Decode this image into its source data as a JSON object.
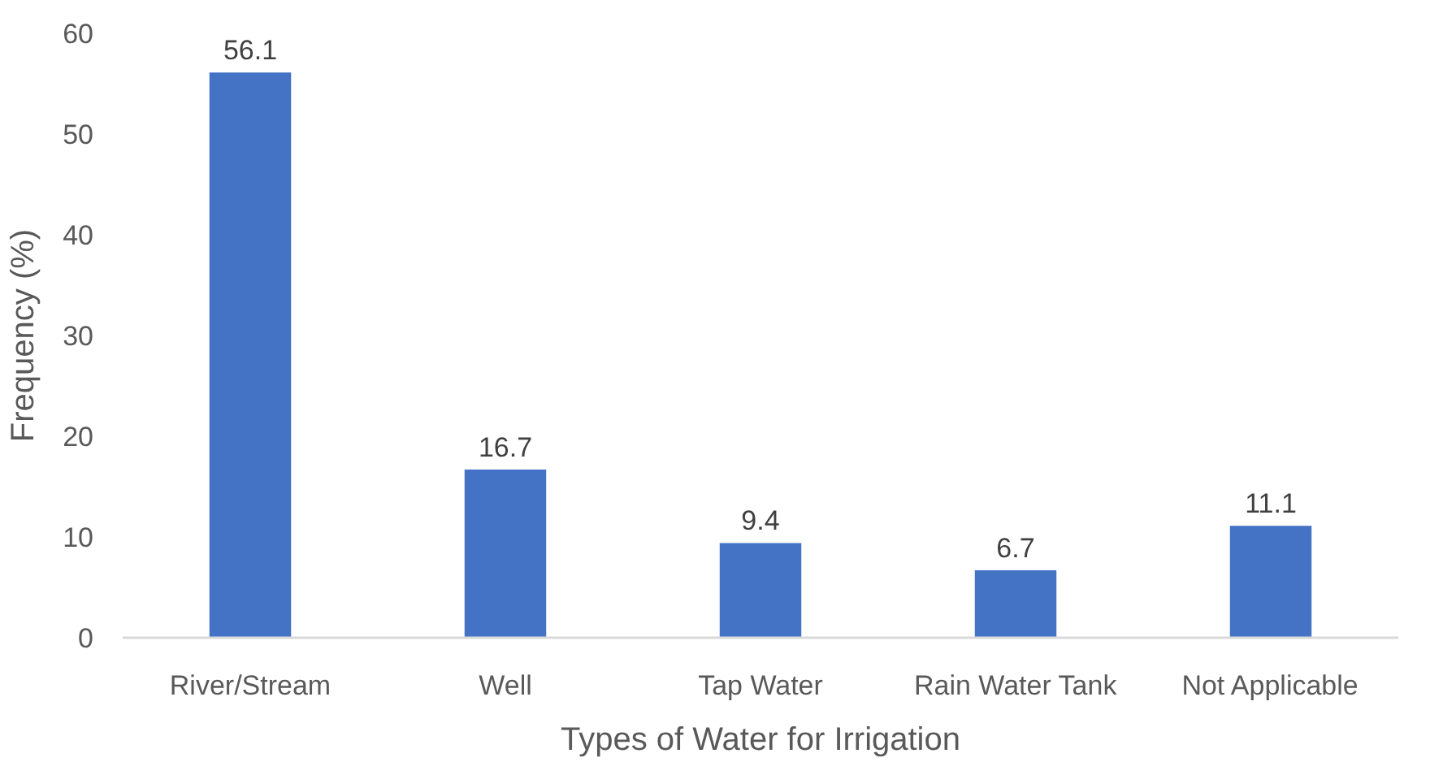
{
  "chart_data": {
    "type": "bar",
    "categories": [
      "River/Stream",
      "Well",
      "Tap Water",
      "Rain Water Tank",
      "Not Applicable"
    ],
    "values": [
      56.1,
      16.7,
      9.4,
      6.7,
      11.1
    ],
    "color": "#4472c4",
    "xlabel": "Types of Water for Irrigation",
    "ylabel": "Frequency (%)",
    "ylim": [
      0,
      60
    ],
    "yticks": [
      0,
      10,
      20,
      30,
      40,
      50,
      60
    ],
    "grid": false,
    "data_labels": true
  }
}
